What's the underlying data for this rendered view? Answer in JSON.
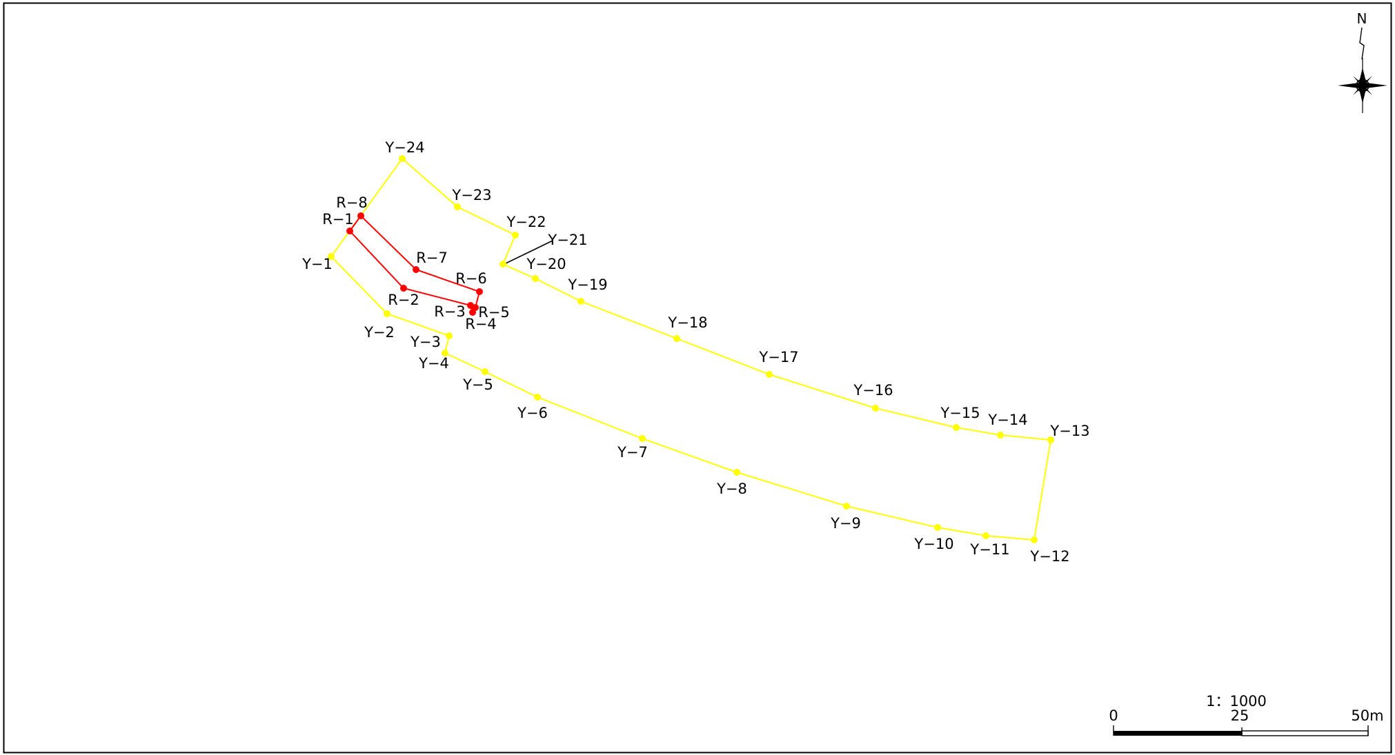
{
  "map": {
    "colors": {
      "yellow_boundary": "#ffff00",
      "red_boundary": "#ff0000",
      "leader_line": "#000000",
      "frame": "#000000",
      "background": "#ffffff"
    },
    "yellow_points": [
      {
        "id": "Y-1",
        "label": "Y−1"
      },
      {
        "id": "Y-2",
        "label": "Y−2"
      },
      {
        "id": "Y-3",
        "label": "Y−3"
      },
      {
        "id": "Y-4",
        "label": "Y−4"
      },
      {
        "id": "Y-5",
        "label": "Y−5"
      },
      {
        "id": "Y-6",
        "label": "Y−6"
      },
      {
        "id": "Y-7",
        "label": "Y−7"
      },
      {
        "id": "Y-8",
        "label": "Y−8"
      },
      {
        "id": "Y-9",
        "label": "Y−9"
      },
      {
        "id": "Y-10",
        "label": "Y−10"
      },
      {
        "id": "Y-11",
        "label": "Y−11"
      },
      {
        "id": "Y-12",
        "label": "Y−12"
      },
      {
        "id": "Y-13",
        "label": "Y−13"
      },
      {
        "id": "Y-14",
        "label": "Y−14"
      },
      {
        "id": "Y-15",
        "label": "Y−15"
      },
      {
        "id": "Y-16",
        "label": "Y−16"
      },
      {
        "id": "Y-17",
        "label": "Y−17"
      },
      {
        "id": "Y-18",
        "label": "Y−18"
      },
      {
        "id": "Y-19",
        "label": "Y−19"
      },
      {
        "id": "Y-20",
        "label": "Y−20"
      },
      {
        "id": "Y-21",
        "label": "Y−21"
      },
      {
        "id": "Y-22",
        "label": "Y−22"
      },
      {
        "id": "Y-23",
        "label": "Y−23"
      },
      {
        "id": "Y-24",
        "label": "Y−24"
      }
    ],
    "red_points": [
      {
        "id": "R-1",
        "label": "R−1"
      },
      {
        "id": "R-2",
        "label": "R−2"
      },
      {
        "id": "R-3",
        "label": "R−3"
      },
      {
        "id": "R-4",
        "label": "R−4"
      },
      {
        "id": "R-5",
        "label": "R−5"
      },
      {
        "id": "R-6",
        "label": "R−6"
      },
      {
        "id": "R-7",
        "label": "R−7"
      },
      {
        "id": "R-8",
        "label": "R−8"
      }
    ],
    "north_arrow": {
      "label": "N",
      "icon": "compass-rose-icon"
    },
    "scale_bar": {
      "ratio": "1：1000",
      "tick_start": "0",
      "tick_mid": "25",
      "tick_end": "50m"
    }
  }
}
